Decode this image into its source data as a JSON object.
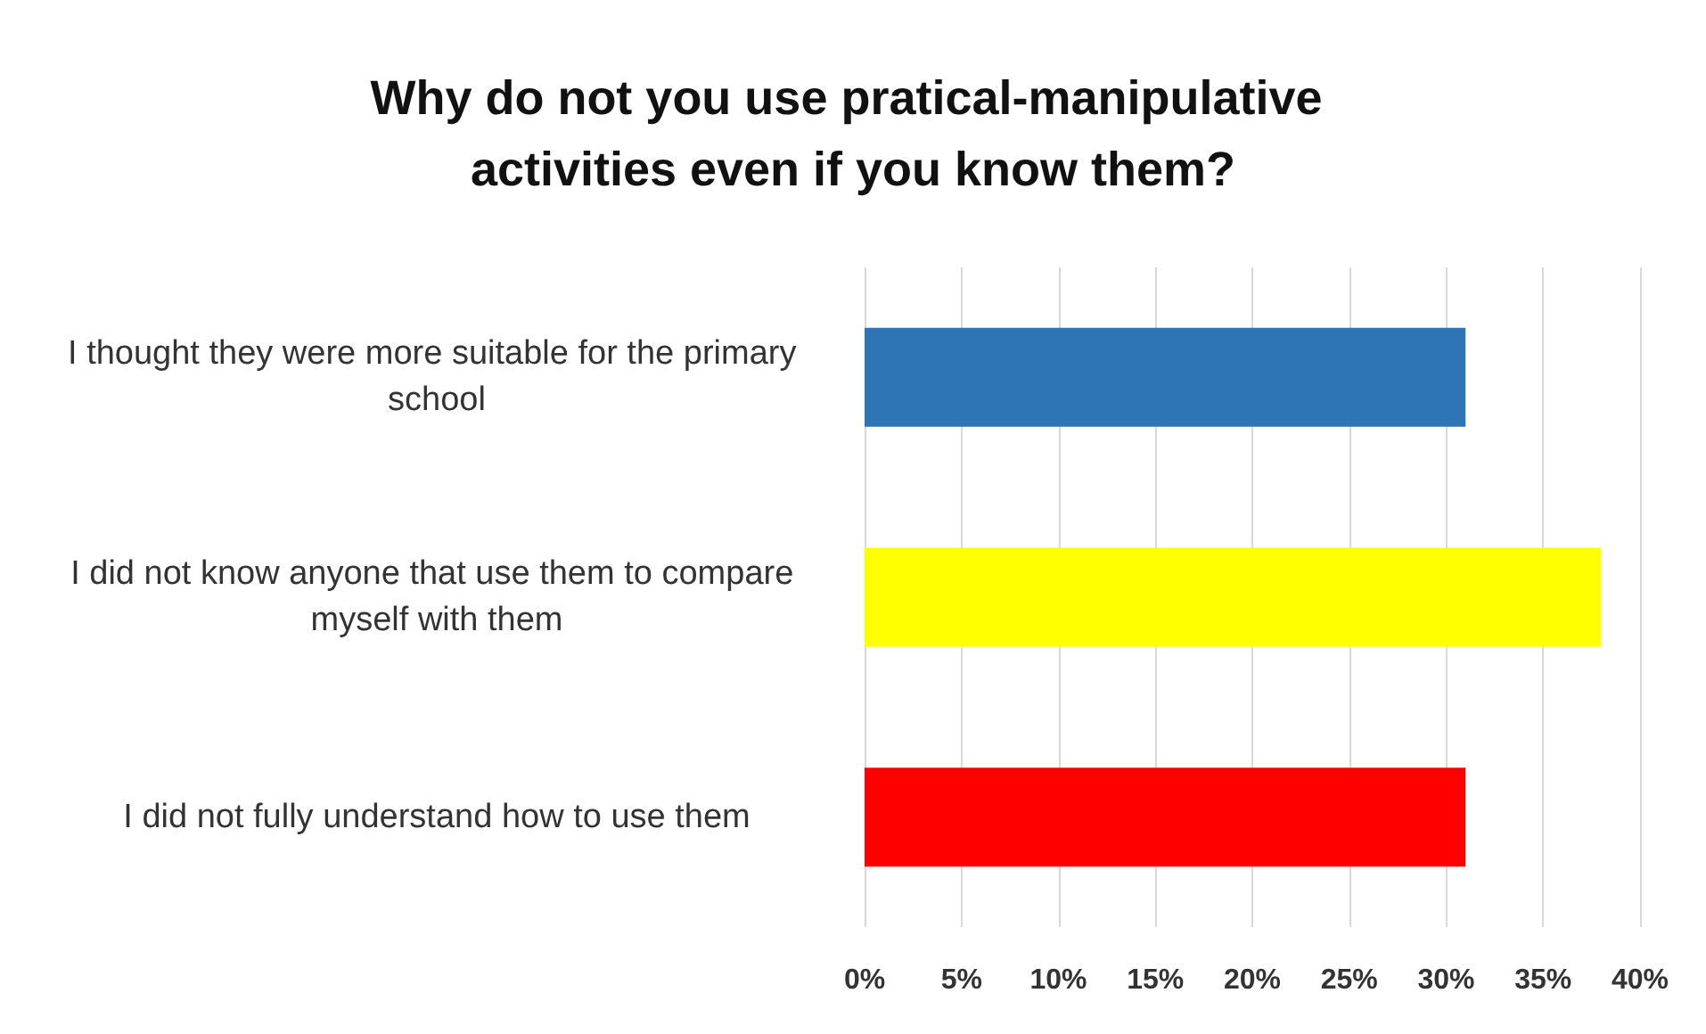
{
  "chart_data": {
    "type": "bar",
    "orientation": "horizontal",
    "title": "Why do not you use pratical-manipulative activities even if you know them?",
    "categories": [
      "I thought they were more suitable for the primary school",
      "I did not know anyone that use them to compare myself with them",
      "I did not fully understand how to use them"
    ],
    "values": [
      31,
      38,
      31
    ],
    "colors": [
      "#2e75b6",
      "#ffff00",
      "#ff0000"
    ],
    "xlim": [
      0,
      40
    ],
    "xticks": [
      {
        "value": 0,
        "label": "0%"
      },
      {
        "value": 5,
        "label": "5%"
      },
      {
        "value": 10,
        "label": "10%"
      },
      {
        "value": 15,
        "label": "15%"
      },
      {
        "value": 20,
        "label": "20%"
      },
      {
        "value": 25,
        "label": "25%"
      },
      {
        "value": 30,
        "label": "30%"
      },
      {
        "value": 35,
        "label": "35%"
      },
      {
        "value": 40,
        "label": "40%"
      }
    ],
    "grid": "x"
  }
}
